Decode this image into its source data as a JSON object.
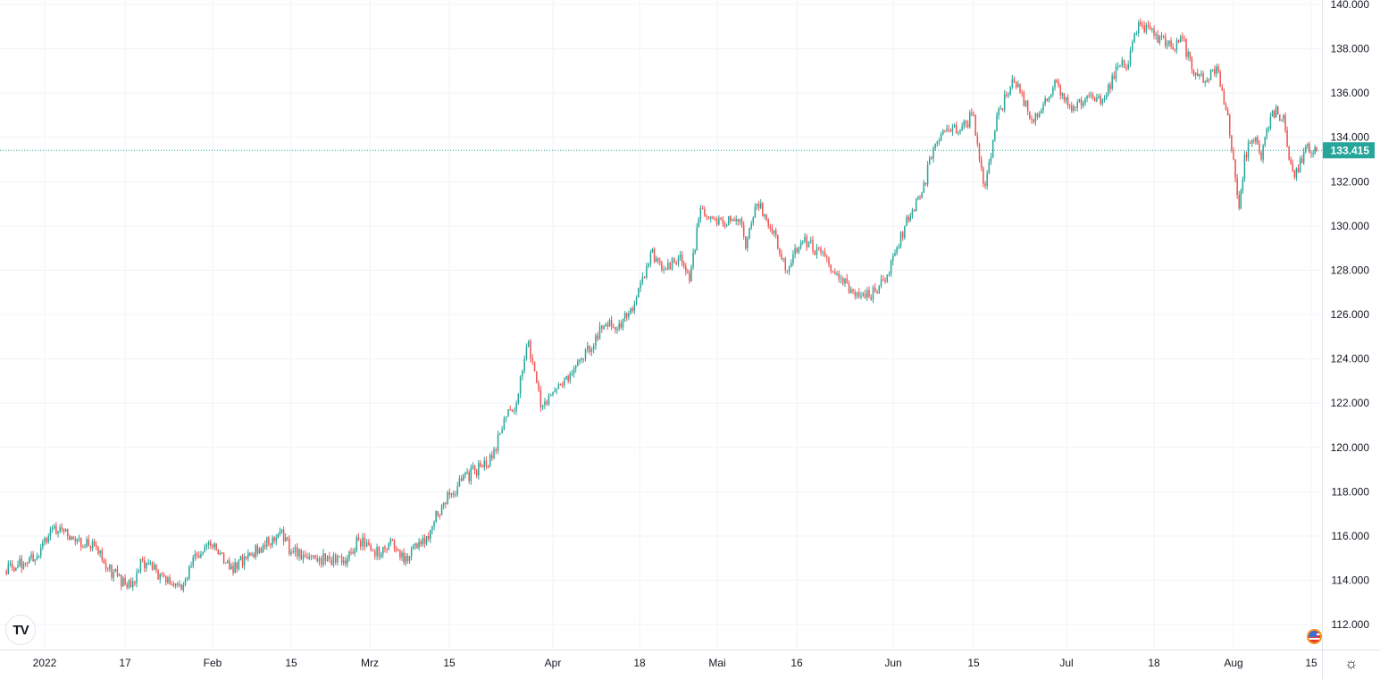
{
  "chart_data": {
    "type": "candlestick",
    "title": "",
    "xlabel": "",
    "ylabel": "",
    "ylim": [
      111,
      140.2
    ],
    "grid": true,
    "colors": {
      "up": "#26a69a",
      "down": "#ef5350",
      "last_price_bg": "#26a69a"
    },
    "last_price": 133.415,
    "last_price_label": "133.415",
    "y_ticks": [
      "140.000",
      "138.000",
      "136.000",
      "134.000",
      "132.000",
      "130.000",
      "128.000",
      "126.000",
      "124.000",
      "122.000",
      "120.000",
      "118.000",
      "116.000",
      "114.000",
      "112.000"
    ],
    "x_ticks": [
      {
        "label": "2022",
        "date": "2022-01-03"
      },
      {
        "label": "17",
        "date": "2022-01-17"
      },
      {
        "label": "Feb",
        "date": "2022-02-01"
      },
      {
        "label": "15",
        "date": "2022-02-15"
      },
      {
        "label": "Mrz",
        "date": "2022-03-01"
      },
      {
        "label": "15",
        "date": "2022-03-15"
      },
      {
        "label": "Apr",
        "date": "2022-04-01"
      },
      {
        "label": "18",
        "date": "2022-04-18"
      },
      {
        "label": "Mai",
        "date": "2022-05-02"
      },
      {
        "label": "16",
        "date": "2022-05-16"
      },
      {
        "label": "Jun",
        "date": "2022-06-01"
      },
      {
        "label": "15",
        "date": "2022-06-15"
      },
      {
        "label": "Jul",
        "date": "2022-07-01"
      },
      {
        "label": "18",
        "date": "2022-07-18"
      },
      {
        "label": "Aug",
        "date": "2022-08-01"
      },
      {
        "label": "15",
        "date": "2022-08-15"
      }
    ],
    "closes": [
      [
        "2021-12-27",
        114.4
      ],
      [
        "2022-01-02",
        115.1
      ],
      [
        "2022-01-04",
        116.3
      ],
      [
        "2022-01-07",
        116.0
      ],
      [
        "2022-01-12",
        115.5
      ],
      [
        "2022-01-14",
        114.5
      ],
      [
        "2022-01-18",
        113.7
      ],
      [
        "2022-01-20",
        114.9
      ],
      [
        "2022-01-24",
        113.9
      ],
      [
        "2022-01-27",
        113.8
      ],
      [
        "2022-01-29",
        115.2
      ],
      [
        "2022-02-01",
        115.5
      ],
      [
        "2022-02-04",
        114.5
      ],
      [
        "2022-02-07",
        115.0
      ],
      [
        "2022-02-10",
        115.6
      ],
      [
        "2022-02-13",
        116.2
      ],
      [
        "2022-02-15",
        115.3
      ],
      [
        "2022-02-20",
        115.0
      ],
      [
        "2022-02-24",
        114.8
      ],
      [
        "2022-02-27",
        115.8
      ],
      [
        "2022-03-03",
        115.2
      ],
      [
        "2022-03-05",
        115.8
      ],
      [
        "2022-03-07",
        114.8
      ],
      [
        "2022-03-11",
        116.0
      ],
      [
        "2022-03-14",
        117.5
      ],
      [
        "2022-03-17",
        118.5
      ],
      [
        "2022-03-22",
        119.5
      ],
      [
        "2022-03-24",
        121.3
      ],
      [
        "2022-03-26",
        122.0
      ],
      [
        "2022-03-28",
        124.8
      ],
      [
        "2022-03-30",
        121.8
      ],
      [
        "2022-04-01",
        122.5
      ],
      [
        "2022-04-04",
        123.0
      ],
      [
        "2022-04-07",
        124.0
      ],
      [
        "2022-04-11",
        125.5
      ],
      [
        "2022-04-14",
        125.6
      ],
      [
        "2022-04-17",
        126.5
      ],
      [
        "2022-04-20",
        128.8
      ],
      [
        "2022-04-22",
        128.0
      ],
      [
        "2022-04-25",
        128.6
      ],
      [
        "2022-04-27",
        127.5
      ],
      [
        "2022-04-29",
        130.8
      ],
      [
        "2022-05-03",
        130.1
      ],
      [
        "2022-05-06",
        130.3
      ],
      [
        "2022-05-07",
        129.0
      ],
      [
        "2022-05-09",
        131.0
      ],
      [
        "2022-05-12",
        129.8
      ],
      [
        "2022-05-14",
        128.0
      ],
      [
        "2022-05-17",
        129.3
      ],
      [
        "2022-05-20",
        128.8
      ],
      [
        "2022-05-23",
        127.6
      ],
      [
        "2022-05-26",
        127.0
      ],
      [
        "2022-05-28",
        126.8
      ],
      [
        "2022-05-31",
        127.8
      ],
      [
        "2022-06-03",
        130.0
      ],
      [
        "2022-06-06",
        131.5
      ],
      [
        "2022-06-08",
        133.5
      ],
      [
        "2022-06-10",
        134.3
      ],
      [
        "2022-06-13",
        134.5
      ],
      [
        "2022-06-15",
        135.0
      ],
      [
        "2022-06-16",
        133.0
      ],
      [
        "2022-06-17",
        131.8
      ],
      [
        "2022-06-19",
        135.0
      ],
      [
        "2022-06-22",
        136.5
      ],
      [
        "2022-06-25",
        134.8
      ],
      [
        "2022-06-27",
        135.5
      ],
      [
        "2022-06-29",
        136.6
      ],
      [
        "2022-07-02",
        135.2
      ],
      [
        "2022-07-05",
        135.9
      ],
      [
        "2022-07-08",
        135.7
      ],
      [
        "2022-07-11",
        137.2
      ],
      [
        "2022-07-13",
        137.3
      ],
      [
        "2022-07-15",
        139.2
      ],
      [
        "2022-07-18",
        138.6
      ],
      [
        "2022-07-21",
        138.1
      ],
      [
        "2022-07-23",
        138.5
      ],
      [
        "2022-07-25",
        136.8
      ],
      [
        "2022-07-27",
        136.5
      ],
      [
        "2022-07-29",
        137.2
      ],
      [
        "2022-07-31",
        135.0
      ],
      [
        "2022-08-01",
        133.0
      ],
      [
        "2022-08-02",
        130.8
      ],
      [
        "2022-08-03",
        133.2
      ],
      [
        "2022-08-05",
        134.0
      ],
      [
        "2022-08-06",
        133.0
      ],
      [
        "2022-08-08",
        135.2
      ],
      [
        "2022-08-10",
        135.0
      ],
      [
        "2022-08-11",
        133.0
      ],
      [
        "2022-08-12",
        132.2
      ],
      [
        "2022-08-14",
        133.6
      ],
      [
        "2022-08-16",
        133.415
      ]
    ]
  },
  "branding": {
    "logo": "TV"
  },
  "icons": {
    "settings": "gear-icon",
    "currency_flag": "us-flag-icon"
  }
}
